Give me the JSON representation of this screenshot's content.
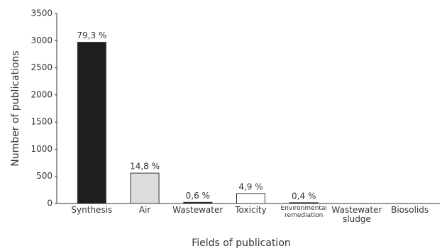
{
  "chart_data": {
    "type": "bar",
    "xlabel": "Fields of publication",
    "ylabel": "Number of publications",
    "categories": [
      "Synthesis",
      "Air",
      "Wastewater",
      "Toxicity",
      "Environmental remediation",
      "Wastewater sludge",
      "Biosolids"
    ],
    "values": [
      2970,
      560,
      22,
      185,
      15,
      0,
      0
    ],
    "annotations": [
      "79,3 %",
      "14,8 %",
      "0,6 %",
      "4,9 %",
      "0,4 %",
      null,
      null
    ],
    "colors": [
      "#1e1e1e",
      "#dcdcdc",
      "#1e1e1e",
      "#ffffff",
      "#1e1e1e",
      "#1e1e1e",
      "#1e1e1e"
    ],
    "ylim": [
      0,
      3500
    ],
    "yticks": [
      0,
      500,
      1000,
      1500,
      2000,
      2500,
      3000,
      3500
    ],
    "grid": false
  }
}
